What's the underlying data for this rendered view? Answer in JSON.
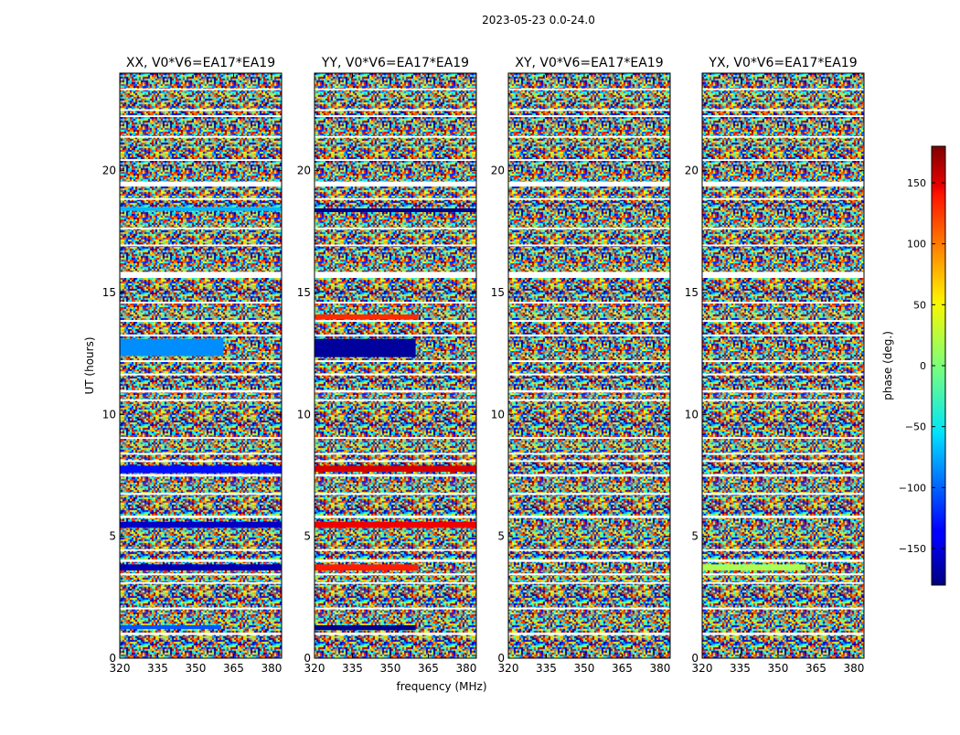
{
  "suptitle": "2023-05-23 0.0-24.0",
  "chart_data": {
    "type": "heatmap",
    "xlabel": "frequency (MHz)",
    "ylabel": "UT (hours)",
    "xlim": [
      320,
      384
    ],
    "ylim": [
      0,
      24
    ],
    "xticks": [
      320,
      335,
      350,
      365,
      380
    ],
    "yticks": [
      0,
      5,
      10,
      15,
      20
    ],
    "panels": [
      {
        "title": "XX, V0*V6=EA17*EA19",
        "bands": [
          {
            "t0": 1.2,
            "t1": 1.35,
            "f0": 320,
            "f1": 360,
            "phase": -105
          },
          {
            "t0": 3.6,
            "t1": 3.85,
            "f0": 320,
            "f1": 384,
            "phase": -160
          },
          {
            "t0": 5.35,
            "t1": 5.6,
            "f0": 320,
            "f1": 384,
            "phase": -155
          },
          {
            "t0": 7.6,
            "t1": 7.9,
            "f0": 320,
            "f1": 384,
            "phase": -130
          },
          {
            "t0": 12.4,
            "t1": 13.1,
            "f0": 320,
            "f1": 361,
            "phase": -85
          },
          {
            "t0": 18.35,
            "t1": 18.5,
            "f0": 320,
            "f1": 384,
            "phase": -70
          }
        ]
      },
      {
        "title": "YY, V0*V6=EA17*EA19",
        "bands": [
          {
            "t0": 1.15,
            "t1": 1.35,
            "f0": 320,
            "f1": 360,
            "phase": -175
          },
          {
            "t0": 3.6,
            "t1": 3.85,
            "f0": 320,
            "f1": 361,
            "phase": 125
          },
          {
            "t0": 5.35,
            "t1": 5.6,
            "f0": 320,
            "f1": 384,
            "phase": 140
          },
          {
            "t0": 7.65,
            "t1": 7.9,
            "f0": 320,
            "f1": 384,
            "phase": 150
          },
          {
            "t0": 12.35,
            "t1": 13.1,
            "f0": 320,
            "f1": 360,
            "phase": -170
          },
          {
            "t0": 13.9,
            "t1": 14.1,
            "f0": 320,
            "f1": 361,
            "phase": 120
          },
          {
            "t0": 18.3,
            "t1": 18.45,
            "f0": 320,
            "f1": 384,
            "phase": -175
          }
        ]
      },
      {
        "title": "XY, V0*V6=EA17*EA19",
        "bands": []
      },
      {
        "title": "YX, V0*V6=EA17*EA19",
        "bands": [
          {
            "t0": 3.6,
            "t1": 3.85,
            "f0": 320,
            "f1": 361,
            "phase": 15
          }
        ]
      }
    ],
    "flagged": [
      [
        0.95,
        1.05
      ],
      [
        2.0,
        2.08
      ],
      [
        3.05,
        3.12
      ],
      [
        3.4,
        3.48
      ],
      [
        3.95,
        4.05
      ],
      [
        4.4,
        4.47
      ],
      [
        5.75,
        5.85
      ],
      [
        6.7,
        6.78
      ],
      [
        7.45,
        7.55
      ],
      [
        8.05,
        8.12
      ],
      [
        8.35,
        8.42
      ],
      [
        9.0,
        9.07
      ],
      [
        10.55,
        10.62
      ],
      [
        10.9,
        11.0
      ],
      [
        11.6,
        11.68
      ],
      [
        12.15,
        12.22
      ],
      [
        13.2,
        13.28
      ],
      [
        13.8,
        13.87
      ],
      [
        14.55,
        14.62
      ],
      [
        15.6,
        15.85
      ],
      [
        16.9,
        16.97
      ],
      [
        17.6,
        17.67
      ],
      [
        18.8,
        18.87
      ],
      [
        19.35,
        19.55
      ],
      [
        20.4,
        20.47
      ],
      [
        21.35,
        21.42
      ],
      [
        22.2,
        22.27
      ],
      [
        22.45,
        22.52
      ],
      [
        23.3,
        23.37
      ]
    ],
    "colorbar": {
      "label": "phase (deg.)",
      "range": [
        -180,
        180
      ],
      "ticks": [
        -150,
        -100,
        -50,
        0,
        50,
        100,
        150
      ],
      "ticklabels": [
        "−150",
        "−100",
        "−50",
        "0",
        "50",
        "100",
        "150"
      ],
      "colormap": "jet"
    }
  }
}
